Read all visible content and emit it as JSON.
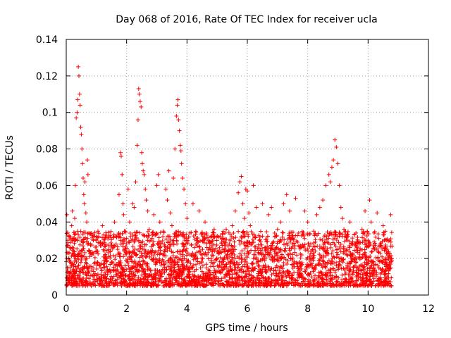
{
  "chart_data": {
    "type": "scatter",
    "title": "Day 068 of 2016, Rate Of TEC Index for receiver ucla",
    "xlabel": "GPS time / hours",
    "ylabel": "ROTI / TECUs",
    "xlim": [
      0,
      12
    ],
    "ylim": [
      0,
      0.14
    ],
    "x_ticks": [
      0,
      2,
      4,
      6,
      8,
      10,
      12
    ],
    "y_ticks": [
      0,
      0.02,
      0.04,
      0.06,
      0.08,
      0.1,
      0.12,
      0.14
    ],
    "x_tick_labels": [
      "0",
      "2",
      "4",
      "6",
      "8",
      "10",
      "12"
    ],
    "y_tick_labels": [
      "0",
      "0.02",
      "0.04",
      "0.06",
      "0.08",
      "0.1",
      "0.12",
      "0.14"
    ],
    "grid": true,
    "marker": "+",
    "series": [
      {
        "name": "ROTI",
        "color": "#ff0000",
        "points": [
          [
            0.02,
            0.044
          ],
          [
            0.05,
            0.03
          ],
          [
            0.08,
            0.02
          ],
          [
            0.1,
            0.012
          ],
          [
            0.12,
            0.026
          ],
          [
            0.15,
            0.018
          ],
          [
            0.18,
            0.038
          ],
          [
            0.2,
            0.046
          ],
          [
            0.22,
            0.03
          ],
          [
            0.25,
            0.014
          ],
          [
            0.28,
            0.042
          ],
          [
            0.3,
            0.06
          ],
          [
            0.33,
            0.097
          ],
          [
            0.36,
            0.1
          ],
          [
            0.38,
            0.107
          ],
          [
            0.4,
            0.125
          ],
          [
            0.42,
            0.12
          ],
          [
            0.44,
            0.11
          ],
          [
            0.46,
            0.104
          ],
          [
            0.48,
            0.092
          ],
          [
            0.5,
            0.088
          ],
          [
            0.52,
            0.08
          ],
          [
            0.54,
            0.072
          ],
          [
            0.56,
            0.064
          ],
          [
            0.58,
            0.055
          ],
          [
            0.6,
            0.05
          ],
          [
            0.62,
            0.062
          ],
          [
            0.65,
            0.045
          ],
          [
            0.68,
            0.04
          ],
          [
            0.7,
            0.074
          ],
          [
            0.72,
            0.066
          ],
          [
            0.75,
            0.034
          ],
          [
            0.8,
            0.028
          ],
          [
            0.85,
            0.022
          ],
          [
            0.9,
            0.03
          ],
          [
            0.95,
            0.018
          ],
          [
            1.0,
            0.024
          ],
          [
            1.05,
            0.035
          ],
          [
            1.1,
            0.016
          ],
          [
            1.15,
            0.027
          ],
          [
            1.2,
            0.038
          ],
          [
            1.3,
            0.02
          ],
          [
            1.4,
            0.032
          ],
          [
            1.5,
            0.018
          ],
          [
            1.6,
            0.04
          ],
          [
            1.7,
            0.025
          ],
          [
            1.75,
            0.055
          ],
          [
            1.8,
            0.078
          ],
          [
            1.82,
            0.076
          ],
          [
            1.85,
            0.066
          ],
          [
            1.88,
            0.05
          ],
          [
            1.9,
            0.044
          ],
          [
            1.95,
            0.035
          ],
          [
            2.0,
            0.028
          ],
          [
            2.05,
            0.058
          ],
          [
            2.1,
            0.04
          ],
          [
            2.15,
            0.03
          ],
          [
            2.2,
            0.05
          ],
          [
            2.25,
            0.048
          ],
          [
            2.3,
            0.062
          ],
          [
            2.35,
            0.082
          ],
          [
            2.38,
            0.096
          ],
          [
            2.4,
            0.113
          ],
          [
            2.42,
            0.11
          ],
          [
            2.45,
            0.106
          ],
          [
            2.48,
            0.103
          ],
          [
            2.5,
            0.078
          ],
          [
            2.52,
            0.072
          ],
          [
            2.55,
            0.068
          ],
          [
            2.58,
            0.066
          ],
          [
            2.62,
            0.058
          ],
          [
            2.65,
            0.052
          ],
          [
            2.7,
            0.046
          ],
          [
            2.75,
            0.036
          ],
          [
            2.8,
            0.03
          ],
          [
            2.9,
            0.044
          ],
          [
            3.0,
            0.06
          ],
          [
            3.05,
            0.066
          ],
          [
            3.1,
            0.04
          ],
          [
            3.2,
            0.032
          ],
          [
            3.3,
            0.058
          ],
          [
            3.35,
            0.052
          ],
          [
            3.4,
            0.068
          ],
          [
            3.45,
            0.045
          ],
          [
            3.5,
            0.038
          ],
          [
            3.55,
            0.064
          ],
          [
            3.6,
            0.08
          ],
          [
            3.65,
            0.098
          ],
          [
            3.68,
            0.104
          ],
          [
            3.7,
            0.107
          ],
          [
            3.72,
            0.096
          ],
          [
            3.75,
            0.09
          ],
          [
            3.78,
            0.082
          ],
          [
            3.8,
            0.079
          ],
          [
            3.82,
            0.072
          ],
          [
            3.85,
            0.064
          ],
          [
            3.9,
            0.058
          ],
          [
            3.95,
            0.05
          ],
          [
            4.0,
            0.042
          ],
          [
            4.1,
            0.034
          ],
          [
            4.2,
            0.05
          ],
          [
            4.3,
            0.028
          ],
          [
            4.4,
            0.046
          ],
          [
            4.5,
            0.022
          ],
          [
            4.6,
            0.04
          ],
          [
            4.7,
            0.03
          ],
          [
            4.8,
            0.018
          ],
          [
            4.9,
            0.036
          ],
          [
            5.0,
            0.024
          ],
          [
            5.1,
            0.032
          ],
          [
            5.2,
            0.02
          ],
          [
            5.3,
            0.036
          ],
          [
            5.4,
            0.028
          ],
          [
            5.5,
            0.038
          ],
          [
            5.6,
            0.046
          ],
          [
            5.7,
            0.056
          ],
          [
            5.75,
            0.062
          ],
          [
            5.8,
            0.065
          ],
          [
            5.85,
            0.05
          ],
          [
            5.9,
            0.042
          ],
          [
            5.95,
            0.058
          ],
          [
            6.0,
            0.057
          ],
          [
            6.05,
            0.045
          ],
          [
            6.1,
            0.038
          ],
          [
            6.2,
            0.06
          ],
          [
            6.3,
            0.048
          ],
          [
            6.4,
            0.03
          ],
          [
            6.5,
            0.05
          ],
          [
            6.6,
            0.026
          ],
          [
            6.7,
            0.044
          ],
          [
            6.8,
            0.048
          ],
          [
            6.9,
            0.024
          ],
          [
            7.0,
            0.036
          ],
          [
            7.1,
            0.04
          ],
          [
            7.2,
            0.05
          ],
          [
            7.3,
            0.055
          ],
          [
            7.4,
            0.046
          ],
          [
            7.5,
            0.028
          ],
          [
            7.6,
            0.053
          ],
          [
            7.7,
            0.034
          ],
          [
            7.8,
            0.022
          ],
          [
            7.9,
            0.046
          ],
          [
            8.0,
            0.04
          ],
          [
            8.1,
            0.028
          ],
          [
            8.2,
            0.035
          ],
          [
            8.3,
            0.044
          ],
          [
            8.4,
            0.048
          ],
          [
            8.5,
            0.052
          ],
          [
            8.6,
            0.06
          ],
          [
            8.7,
            0.066
          ],
          [
            8.75,
            0.062
          ],
          [
            8.8,
            0.07
          ],
          [
            8.85,
            0.074
          ],
          [
            8.9,
            0.085
          ],
          [
            8.95,
            0.081
          ],
          [
            9.0,
            0.072
          ],
          [
            9.05,
            0.06
          ],
          [
            9.1,
            0.048
          ],
          [
            9.15,
            0.042
          ],
          [
            9.2,
            0.036
          ],
          [
            9.3,
            0.03
          ],
          [
            9.4,
            0.04
          ],
          [
            9.5,
            0.022
          ],
          [
            9.6,
            0.034
          ],
          [
            9.7,
            0.028
          ],
          [
            9.8,
            0.036
          ],
          [
            9.9,
            0.046
          ],
          [
            10.0,
            0.03
          ],
          [
            10.05,
            0.052
          ],
          [
            10.1,
            0.04
          ],
          [
            10.2,
            0.034
          ],
          [
            10.3,
            0.045
          ],
          [
            10.4,
            0.028
          ],
          [
            10.5,
            0.038
          ],
          [
            10.6,
            0.024
          ],
          [
            10.7,
            0.03
          ],
          [
            10.75,
            0.044
          ],
          [
            10.78,
            0.02
          ]
        ]
      }
    ],
    "dense_band": {
      "x_range": [
        0,
        10.8
      ],
      "typical_range": [
        0.005,
        0.035
      ],
      "point_count": 3000
    }
  }
}
